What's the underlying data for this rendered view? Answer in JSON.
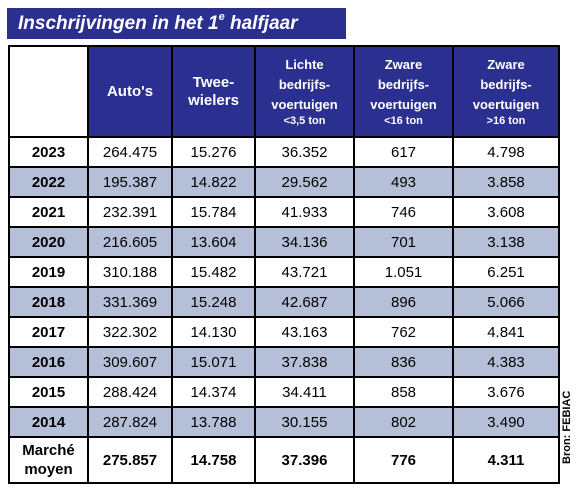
{
  "title": {
    "text": "Inschrijvingen in het 1",
    "superscript": "e",
    "suffix": " halfjaar"
  },
  "source": "Bron: FEBIAC",
  "colors": {
    "header_background": "#2b2f8f",
    "header_text": "#ffffff",
    "shaded_row": "#b6bfd8",
    "border": "#000000"
  },
  "chart_data": {
    "type": "table",
    "title": "Inschrijvingen in het 1e halfjaar",
    "columns": [
      {
        "lines": [
          "Auto's"
        ],
        "sub": ""
      },
      {
        "lines": [
          "Twee-",
          "wielers"
        ],
        "sub": ""
      },
      {
        "lines": [
          "Lichte",
          "bedrijfs-",
          "voertuigen"
        ],
        "sub": "<3,5 ton"
      },
      {
        "lines": [
          "Zware",
          "bedrijfs-",
          "voertuigen"
        ],
        "sub": "<16 ton"
      },
      {
        "lines": [
          "Zware",
          "bedrijfs-",
          "voertuigen"
        ],
        "sub": ">16 ton"
      }
    ],
    "rows": [
      {
        "year": "2023",
        "values": [
          "264.475",
          "15.276",
          "36.352",
          "617",
          "4.798"
        ]
      },
      {
        "year": "2022",
        "values": [
          "195.387",
          "14.822",
          "29.562",
          "493",
          "3.858"
        ]
      },
      {
        "year": "2021",
        "values": [
          "232.391",
          "15.784",
          "41.933",
          "746",
          "3.608"
        ]
      },
      {
        "year": "2020",
        "values": [
          "216.605",
          "13.604",
          "34.136",
          "701",
          "3.138"
        ]
      },
      {
        "year": "2019",
        "values": [
          "310.188",
          "15.482",
          "43.721",
          "1.051",
          "6.251"
        ]
      },
      {
        "year": "2018",
        "values": [
          "331.369",
          "15.248",
          "42.687",
          "896",
          "5.066"
        ]
      },
      {
        "year": "2017",
        "values": [
          "322.302",
          "14.130",
          "43.163",
          "762",
          "4.841"
        ]
      },
      {
        "year": "2016",
        "values": [
          "309.607",
          "15.071",
          "37.838",
          "836",
          "4.383"
        ]
      },
      {
        "year": "2015",
        "values": [
          "288.424",
          "14.374",
          "34.411",
          "858",
          "3.676"
        ]
      },
      {
        "year": "2014",
        "values": [
          "287.824",
          "13.788",
          "30.155",
          "802",
          "3.490"
        ]
      }
    ],
    "average": {
      "label_lines": [
        "Marché",
        "moyen"
      ],
      "values": [
        "275.857",
        "14.758",
        "37.396",
        "776",
        "4.311"
      ]
    }
  }
}
